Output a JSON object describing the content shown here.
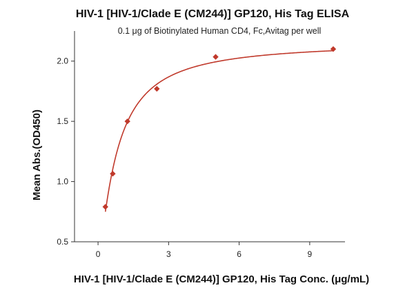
{
  "chart_data": {
    "type": "scatter",
    "title": "HIV-1 [HIV-1/Clade E (CM244)] GP120, His Tag ELISA",
    "subtitle": "0.1 μg of Biotinylated Human CD4, Fc,Avitag per well",
    "xlabel": "HIV-1 [HIV-1/Clade E (CM244)] GP120, His Tag Conc. (μg/mL)",
    "ylabel": "Mean Abs.(OD450)",
    "xlim": [
      -1,
      10.5
    ],
    "ylim": [
      0.5,
      2.25
    ],
    "x_ticks": [
      0,
      3,
      6,
      9
    ],
    "y_ticks": [
      0.5,
      1.0,
      1.5,
      2.0
    ],
    "x_tick_labels": [
      "0",
      "3",
      "6",
      "9"
    ],
    "y_tick_labels": [
      "0.5",
      "1.0",
      "1.5",
      "2.0"
    ],
    "series": [
      {
        "x": [
          0.3125,
          0.625,
          1.25,
          2.5,
          5,
          10
        ],
        "y": [
          0.79,
          1.065,
          1.5,
          1.77,
          2.035,
          2.1
        ],
        "marker": "diamond",
        "fit": "four-parameter logistic curve",
        "fit_params": {
          "bottom": 0.3,
          "top": 2.16,
          "ec50": 0.78,
          "hill": 1.25
        }
      }
    ],
    "grid": false,
    "colors": {
      "series": "#c0392b",
      "axis": "#333333",
      "text": "#111111"
    }
  }
}
